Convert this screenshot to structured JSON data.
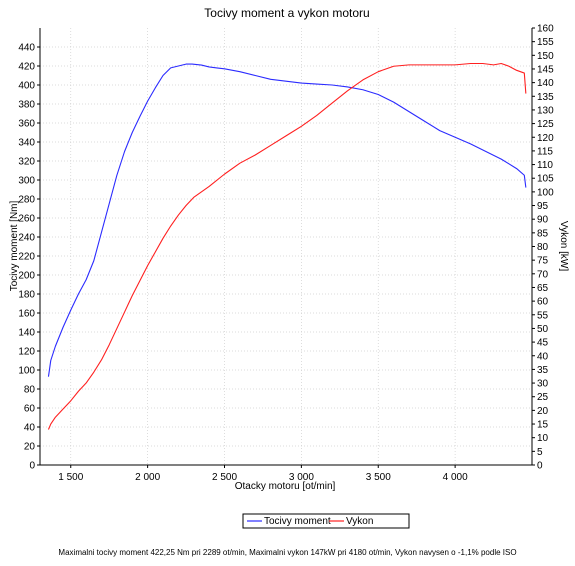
{
  "footer": {
    "note": "Maximalni tocivy moment 422,25 Nm pri 2289 ot/min,  Maximalni vykon 147kW pri 4180 ot/min,  Vykon navysen o -1,1% podle ISO"
  },
  "chart_data": {
    "type": "line",
    "title": "Tocivy moment a vykon motoru",
    "xlabel": "Otacky motoru [ot/min]",
    "ylabel": "Tocivy moment [Nm]",
    "y2label": "Vykon [kW]",
    "xlim": [
      1300,
      4500
    ],
    "ylim": [
      0,
      460
    ],
    "y2lim": [
      0,
      160
    ],
    "x_ticks": [
      1500,
      2000,
      2500,
      3000,
      3500,
      4000
    ],
    "x_tick_labels": [
      "1 500",
      "2 000",
      "2 500",
      "3 000",
      "3 500",
      "4 000"
    ],
    "y_ticks": [
      0,
      20,
      40,
      60,
      80,
      100,
      120,
      140,
      160,
      180,
      200,
      220,
      240,
      260,
      280,
      300,
      320,
      340,
      360,
      380,
      400,
      420,
      440
    ],
    "y2_ticks": [
      0,
      5,
      10,
      15,
      20,
      25,
      30,
      35,
      40,
      45,
      50,
      55,
      60,
      65,
      70,
      75,
      80,
      85,
      90,
      95,
      100,
      105,
      110,
      115,
      120,
      125,
      130,
      135,
      140,
      145,
      150,
      155,
      160
    ],
    "grid": true,
    "legend_position": "bottom-center",
    "colors": {
      "torque": "#2b2bff",
      "power": "#ff2020"
    },
    "series": [
      {
        "name": "Tocivy moment",
        "axis": "left",
        "x": [
          1355,
          1370,
          1400,
          1450,
          1500,
          1550,
          1600,
          1650,
          1700,
          1750,
          1800,
          1850,
          1900,
          1950,
          2000,
          2050,
          2100,
          2150,
          2200,
          2250,
          2289,
          2350,
          2400,
          2450,
          2500,
          2600,
          2700,
          2800,
          2900,
          3000,
          3100,
          3200,
          3300,
          3400,
          3500,
          3600,
          3700,
          3800,
          3900,
          4000,
          4100,
          4200,
          4300,
          4400,
          4450,
          4460
        ],
        "y": [
          93,
          110,
          125,
          145,
          163,
          180,
          195,
          215,
          245,
          275,
          305,
          330,
          350,
          367,
          383,
          397,
          410,
          418,
          420,
          422,
          422,
          421,
          419,
          418,
          417,
          414,
          410,
          406,
          404,
          402,
          401,
          400,
          398,
          395,
          390,
          382,
          372,
          362,
          352,
          345,
          338,
          330,
          322,
          312,
          305,
          292
        ]
      },
      {
        "name": "Vykon",
        "axis": "right",
        "x": [
          1355,
          1370,
          1400,
          1450,
          1500,
          1550,
          1600,
          1650,
          1700,
          1750,
          1800,
          1850,
          1900,
          1950,
          2000,
          2050,
          2100,
          2150,
          2200,
          2250,
          2300,
          2400,
          2500,
          2600,
          2700,
          2800,
          2900,
          3000,
          3100,
          3200,
          3300,
          3400,
          3500,
          3600,
          3700,
          3800,
          3900,
          4000,
          4100,
          4180,
          4250,
          4300,
          4350,
          4400,
          4450,
          4460
        ],
        "y": [
          13,
          15,
          17.5,
          20.5,
          23.5,
          27,
          30,
          34,
          38.5,
          44,
          50,
          56,
          62,
          67.5,
          73,
          78,
          83,
          87.5,
          91.5,
          95,
          98,
          102,
          106.5,
          110.5,
          113.5,
          117,
          120.5,
          124,
          128,
          132.5,
          137,
          141,
          144,
          146,
          146.5,
          146.5,
          146.5,
          146.5,
          147,
          147,
          146.5,
          147,
          146,
          144.5,
          143.5,
          136
        ]
      }
    ]
  }
}
